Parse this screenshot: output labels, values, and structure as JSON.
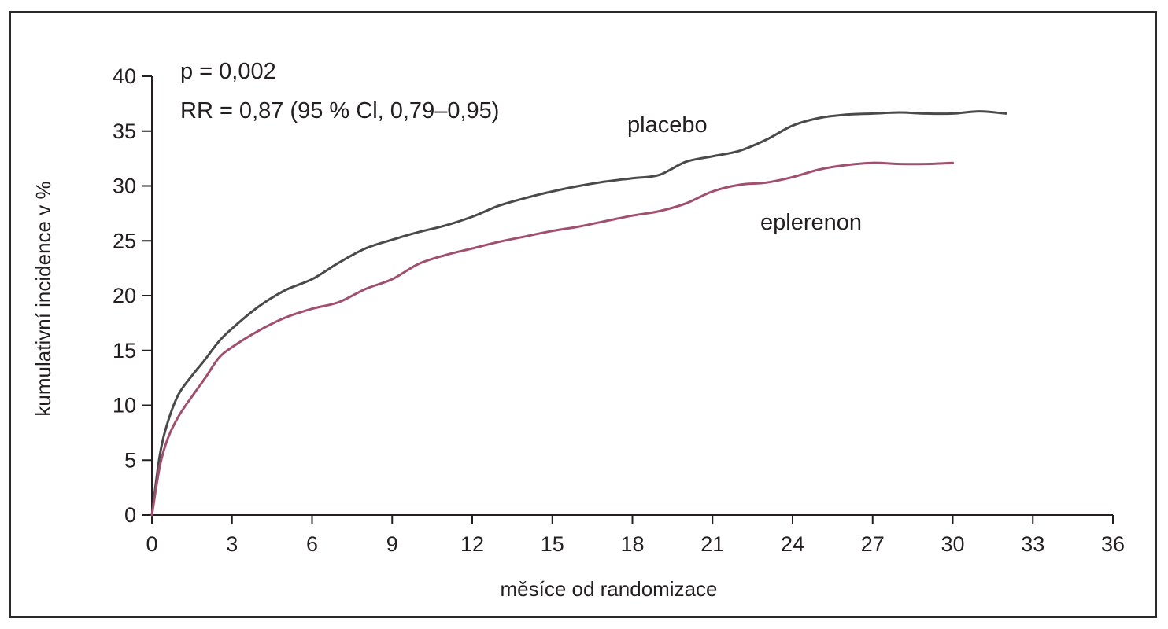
{
  "chart_data": {
    "type": "line",
    "title": "",
    "xlabel": "měsíce od randomizace",
    "ylabel": "kumulativní incidence v %",
    "xlim": [
      0,
      36
    ],
    "ylim": [
      0,
      40
    ],
    "xticks": [
      0,
      3,
      6,
      9,
      12,
      15,
      18,
      21,
      24,
      27,
      30,
      33,
      36
    ],
    "yticks": [
      0,
      5,
      10,
      15,
      20,
      25,
      30,
      35,
      40
    ],
    "grid": false,
    "annotations": [
      "p = 0,002",
      "RR = 0,87 (95 % Cl, 0,79–0,95)"
    ],
    "series": [
      {
        "name": "placebo",
        "color": "#4a4a4a",
        "x": [
          0,
          0.3,
          0.6,
          1,
          1.5,
          2,
          2.5,
          3,
          4,
          5,
          6,
          7,
          8,
          9,
          10,
          11,
          12,
          13,
          14,
          15,
          16,
          17,
          18,
          19,
          20,
          21,
          22,
          23,
          24,
          25,
          26,
          27,
          28,
          29,
          30,
          31,
          32
        ],
        "y": [
          0,
          5.5,
          8.5,
          11,
          12.7,
          14.2,
          15.8,
          17,
          19,
          20.5,
          21.5,
          23,
          24.3,
          25.1,
          25.8,
          26.4,
          27.2,
          28.2,
          28.9,
          29.5,
          30,
          30.4,
          30.7,
          31,
          32.2,
          32.7,
          33.2,
          34.2,
          35.5,
          36.2,
          36.5,
          36.6,
          36.7,
          36.6,
          36.6,
          36.8,
          36.6
        ]
      },
      {
        "name": "eplerenon",
        "color": "#a0506e",
        "x": [
          0,
          0.3,
          0.6,
          1,
          1.5,
          2,
          2.5,
          3,
          4,
          5,
          6,
          7,
          8,
          9,
          10,
          11,
          12,
          13,
          14,
          15,
          16,
          17,
          18,
          19,
          20,
          21,
          22,
          23,
          24,
          25,
          26,
          27,
          28,
          29,
          30
        ],
        "y": [
          0,
          4.5,
          7,
          9,
          10.8,
          12.5,
          14.3,
          15.3,
          16.8,
          18,
          18.8,
          19.4,
          20.6,
          21.5,
          22.9,
          23.7,
          24.3,
          24.9,
          25.4,
          25.9,
          26.3,
          26.8,
          27.3,
          27.7,
          28.4,
          29.5,
          30.1,
          30.3,
          30.8,
          31.5,
          31.9,
          32.1,
          32,
          32,
          32.1
        ]
      }
    ]
  }
}
